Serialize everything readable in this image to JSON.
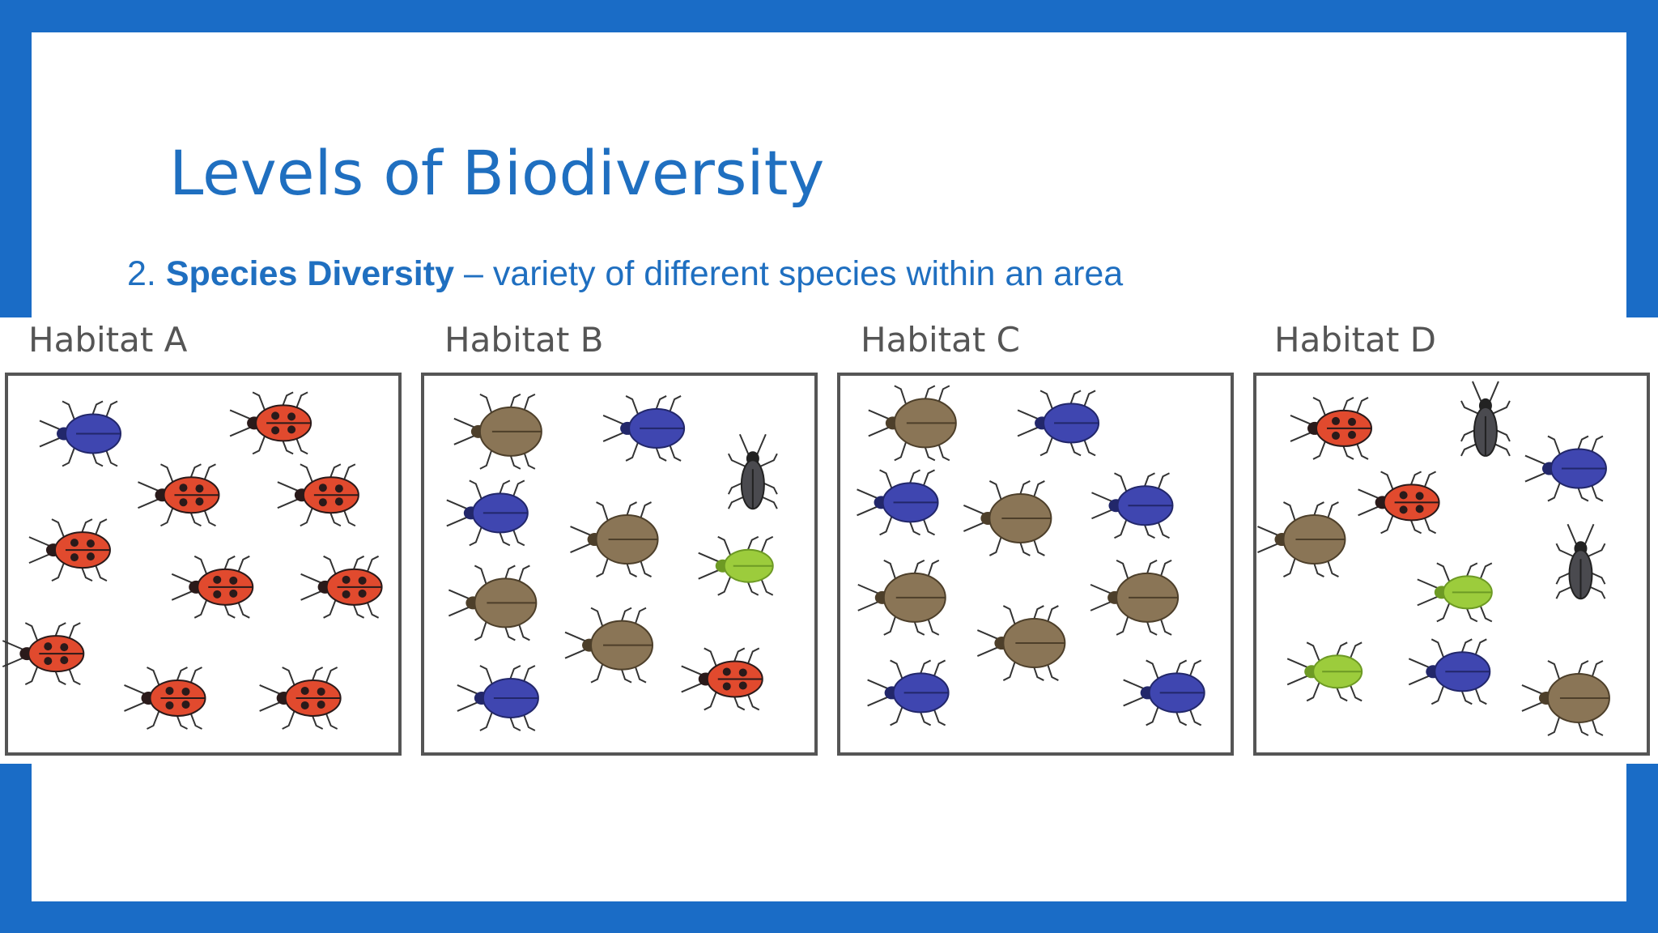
{
  "slide": {
    "title": "Levels of Biodiversity",
    "point": {
      "number": "2.",
      "term": "Species Diversity",
      "definition": "– variety of different species within an area"
    },
    "habitats": [
      "Habitat A",
      "Habitat B",
      "Habitat C",
      "Habitat D"
    ]
  }
}
